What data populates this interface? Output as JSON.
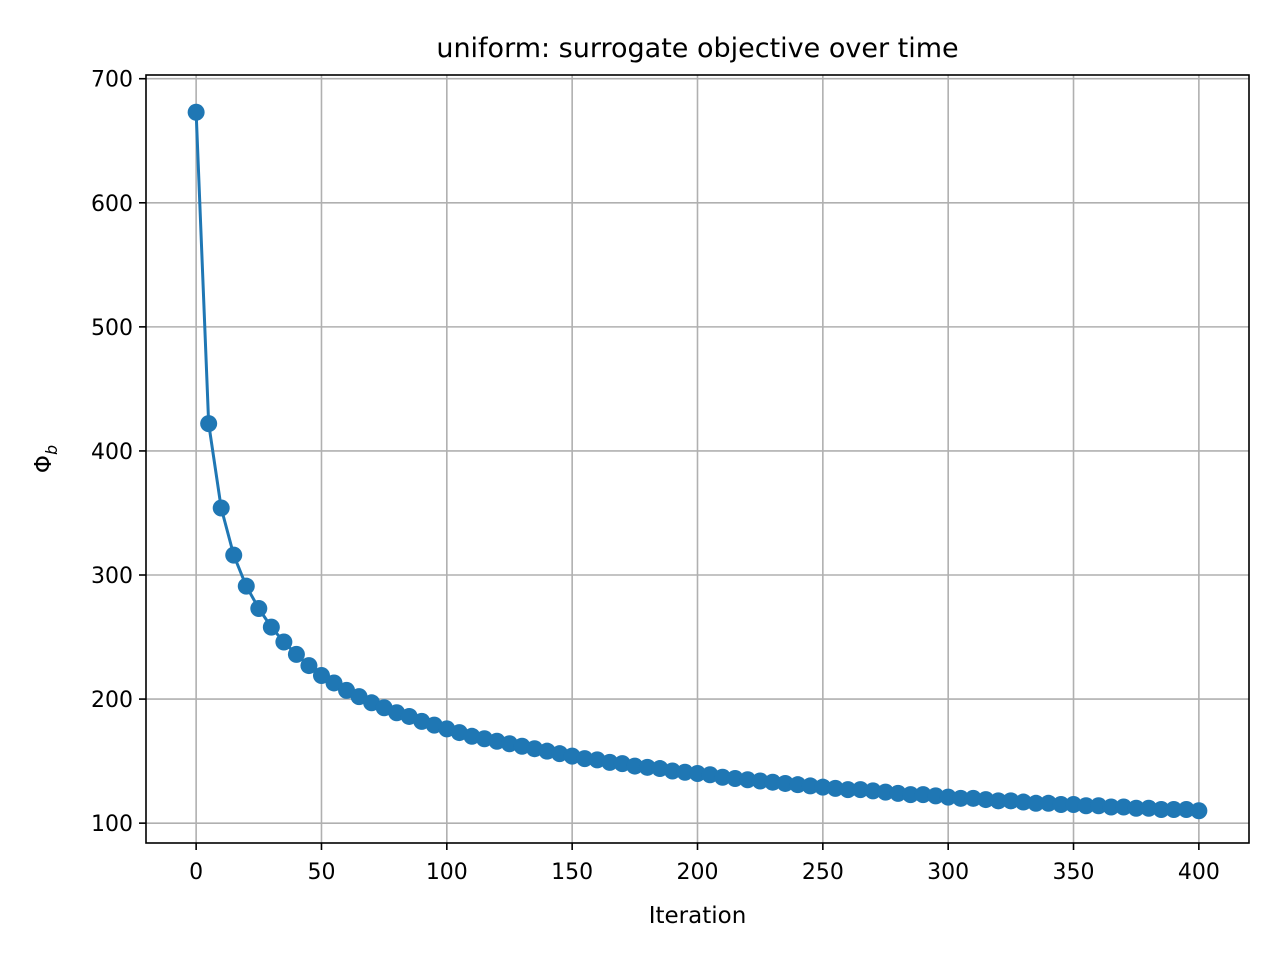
{
  "chart_data": {
    "type": "line",
    "title": "uniform: surrogate objective over time",
    "xlabel": "Iteration",
    "ylabel": "Φ",
    "ylabel_subscript": "b",
    "xlim": [
      -20,
      420
    ],
    "ylim": [
      84,
      703
    ],
    "xticks": [
      0,
      50,
      100,
      150,
      200,
      250,
      300,
      350,
      400
    ],
    "yticks": [
      100,
      200,
      300,
      400,
      500,
      600,
      700
    ],
    "grid": true,
    "marker": "circle",
    "color": "#1f77b4",
    "series": [
      {
        "x": [
          0,
          5,
          10,
          15,
          20,
          25,
          30,
          35,
          40,
          45,
          50,
          55,
          60,
          65,
          70,
          75,
          80,
          85,
          90,
          95,
          100,
          105,
          110,
          115,
          120,
          125,
          130,
          135,
          140,
          145,
          150,
          155,
          160,
          165,
          170,
          175,
          180,
          185,
          190,
          195,
          200,
          205,
          210,
          215,
          220,
          225,
          230,
          235,
          240,
          245,
          250,
          255,
          260,
          265,
          270,
          275,
          280,
          285,
          290,
          295,
          300,
          305,
          310,
          315,
          320,
          325,
          330,
          335,
          340,
          345,
          350,
          355,
          360,
          365,
          370,
          375,
          380,
          385,
          390,
          395,
          400
        ],
        "y": [
          673,
          422,
          354,
          316,
          291,
          273,
          258,
          246,
          236,
          227,
          219,
          213,
          207,
          202,
          197,
          193,
          189,
          186,
          182,
          179,
          176,
          173,
          170,
          168,
          166,
          164,
          162,
          160,
          158,
          156,
          154,
          152,
          151,
          149,
          148,
          146,
          145,
          144,
          142,
          141,
          140,
          139,
          137,
          136,
          135,
          134,
          133,
          132,
          131,
          130,
          129,
          128,
          127,
          127,
          126,
          125,
          124,
          123,
          123,
          122,
          121,
          120,
          120,
          119,
          118,
          118,
          117,
          116,
          116,
          115,
          115,
          114,
          114,
          113,
          113,
          112,
          112,
          111,
          111,
          111,
          110
        ]
      }
    ]
  }
}
